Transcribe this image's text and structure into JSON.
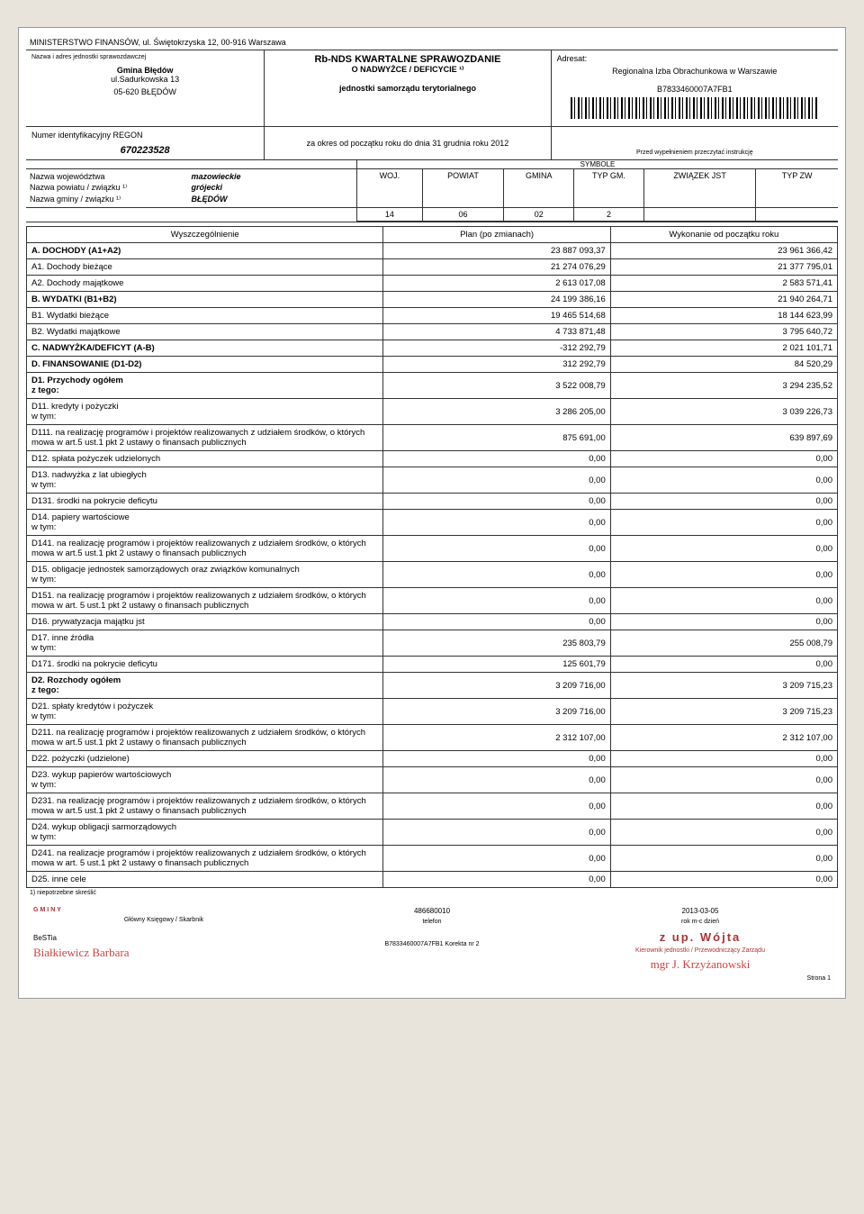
{
  "ministry": "MINISTERSTWO FINANSÓW, ul. Świętokrzyska 12, 00-916 Warszawa",
  "unit_label": "Nazwa i adres jednostki sprawozdawczej",
  "unit_name": "Gmina Błędów",
  "unit_addr1": "ul.Sadurkowska 13",
  "unit_addr2": "05-620 BŁĘDÓW",
  "report_title": "Rb-NDS KWARTALNE SPRAWOZDANIE",
  "report_sub": "O NADWYŻCE / DEFICYCIE ¹⁾",
  "report_sub2": "jednostki samorządu terytorialnego",
  "period": "za okres od początku roku do dnia 31 grudnia roku 2012",
  "adresat_label": "Adresat:",
  "adresat": "Regionalna Izba Obrachunkowa w Warszawie",
  "code": "B7833460007A7FB1",
  "instr": "Przed wypełnieniem przeczytać instrukcję",
  "regon_label": "Numer identyfikacyjny REGON",
  "regon": "670223528",
  "woj_label": "Nazwa województwa",
  "woj": "mazowieckie",
  "pow_label": "Nazwa powiatu / związku ¹⁾",
  "pow": "grójecki",
  "gm_label": "Nazwa gminy / związku ¹⁾",
  "gm": "BŁĘDÓW",
  "symbole": "SYMBOLE",
  "sym_woj_h": "WOJ.",
  "sym_pow_h": "POWIAT",
  "sym_gm_h": "GMINA",
  "sym_typ_h": "TYP GM.",
  "sym_zw_h": "ZWIĄZEK JST",
  "sym_typzw_h": "TYP ZW",
  "sym_woj": "14",
  "sym_pow": "06",
  "sym_gm": "02",
  "sym_typ": "2",
  "col1": "Wyszczególnienie",
  "col2": "Plan (po zmianach)",
  "col3": "Wykonanie od początku roku",
  "rows": [
    {
      "label": "A. DOCHODY (A1+A2)",
      "plan": "23 887 093,37",
      "exec": "23 961 366,42",
      "cls": "section"
    },
    {
      "label": "A1. Dochody bieżące",
      "plan": "21 274 076,29",
      "exec": "21 377 795,01"
    },
    {
      "label": "A2. Dochody majątkowe",
      "plan": "2 613 017,08",
      "exec": "2 583 571,41"
    },
    {
      "label": "B. WYDATKI (B1+B2)",
      "plan": "24 199 386,16",
      "exec": "21 940 264,71",
      "cls": "section"
    },
    {
      "label": "B1. Wydatki bieżące",
      "plan": "19 465 514,68",
      "exec": "18 144 623,99"
    },
    {
      "label": "B2. Wydatki majątkowe",
      "plan": "4 733 871,48",
      "exec": "3 795 640,72"
    },
    {
      "label": "C. NADWYŻKA/DEFICYT (A-B)",
      "plan": "-312 292,79",
      "exec": "2 021 101,71",
      "cls": "section"
    },
    {
      "label": "D. FINANSOWANIE (D1-D2)",
      "plan": "312 292,79",
      "exec": "84 520,29",
      "cls": "section"
    },
    {
      "label": "D1. Przychody ogółem\nz tego:",
      "plan": "3 522 008,79",
      "exec": "3 294 235,52",
      "cls": "section"
    },
    {
      "label": "D11. kredyty i pożyczki\nw tym:",
      "plan": "3 286 205,00",
      "exec": "3 039 226,73"
    },
    {
      "label": "D111. na realizację programów i projektów realizowanych z udziałem środków, o których mowa w art.5 ust.1 pkt 2 ustawy o finansach publicznych",
      "plan": "875 691,00",
      "exec": "639 897,69"
    },
    {
      "label": "D12. spłata pożyczek udzielonych",
      "plan": "0,00",
      "exec": "0,00"
    },
    {
      "label": "D13. nadwyżka z lat ubiegłych\nw tym:",
      "plan": "0,00",
      "exec": "0,00"
    },
    {
      "label": "D131. środki na pokrycie deficytu",
      "plan": "0,00",
      "exec": "0,00"
    },
    {
      "label": "D14. papiery wartościowe\nw tym:",
      "plan": "0,00",
      "exec": "0,00"
    },
    {
      "label": "D141. na realizację programów i projektów realizowanych z udziałem środków, o których mowa w art.5 ust.1 pkt 2 ustawy o finansach publicznych",
      "plan": "0,00",
      "exec": "0,00"
    },
    {
      "label": "D15. obligacje jednostek samorządowych oraz związków komunalnych\nw tym:",
      "plan": "0,00",
      "exec": "0,00"
    },
    {
      "label": "D151. na realizację programów i projektów realizowanych z udziałem środków, o których mowa w art. 5 ust.1 pkt 2 ustawy o finansach publicznych",
      "plan": "0,00",
      "exec": "0,00"
    },
    {
      "label": "D16. prywatyzacja majątku jst",
      "plan": "0,00",
      "exec": "0,00"
    },
    {
      "label": "D17. inne źródła\nw tym:",
      "plan": "235 803,79",
      "exec": "255 008,79"
    },
    {
      "label": "D171. środki na pokrycie deficytu",
      "plan": "125 601,79",
      "exec": "0,00"
    },
    {
      "label": "D2. Rozchody ogółem\nz tego:",
      "plan": "3 209 716,00",
      "exec": "3 209 715,23",
      "cls": "section"
    },
    {
      "label": "D21. spłaty kredytów i pożyczek\nw tym:",
      "plan": "3 209 716,00",
      "exec": "3 209 715,23"
    },
    {
      "label": "D211. na realizację programów i projektów realizowanych z udziałem środków, o których mowa w art.5 ust.1 pkt 2 ustawy o finansach publicznych",
      "plan": "2 312 107,00",
      "exec": "2 312 107,00"
    },
    {
      "label": "D22. pożyczki (udzielone)",
      "plan": "0,00",
      "exec": "0,00"
    },
    {
      "label": "D23. wykup papierów wartościowych\nw tym:",
      "plan": "0,00",
      "exec": "0,00"
    },
    {
      "label": "D231. na realizację programów i projektów realizowanych z udziałem środków, o których mowa w art.5 ust.1 pkt 2 ustawy o finansach publicznych",
      "plan": "0,00",
      "exec": "0,00"
    },
    {
      "label": "D24. wykup obligacji sarmorządowych\nw tym:",
      "plan": "0,00",
      "exec": "0,00"
    },
    {
      "label": "D241. na realizacje programów i projektów realizowanych z udziałem środków, o których mowa w art. 5 ust.1 pkt 2 ustawy o finansach publicznych",
      "plan": "0,00",
      "exec": "0,00"
    },
    {
      "label": "D25. inne cele",
      "plan": "0,00",
      "exec": "0,00"
    }
  ],
  "footnote": "1) niepotrzebne skreślić",
  "sig1_role": "Główny Księgowy / Skarbnik",
  "sig1_stamp": "GMINY",
  "phone": "486680010",
  "phone_label": "telefon",
  "date": "2013-03-05",
  "date_label": "rok m-c dzień",
  "sig2_role": "Kierownik jednostki / Przewodniczący Zarządu",
  "stamp_text": "z up. Wójta",
  "sig2_name": "mgr J. Krzyżanowski",
  "bestia": "BeSTia",
  "sig1_name": "Białkiewicz Barbara",
  "korekta": "B7833460007A7FB1 Korekta nr 2",
  "strona": "Strona 1"
}
